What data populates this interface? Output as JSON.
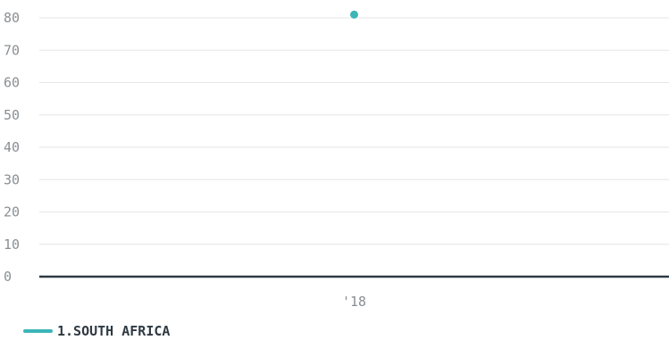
{
  "chart_data": {
    "type": "line",
    "title": "",
    "xlabel": "",
    "ylabel": "",
    "categories": [
      "'18"
    ],
    "ylim": [
      0,
      80
    ],
    "yticks": [
      0,
      10,
      20,
      30,
      40,
      50,
      60,
      70,
      80
    ],
    "grid": true,
    "legend_position": "bottom-left",
    "series": [
      {
        "name": "1.SOUTH AFRICA",
        "color": "#3bb5b8",
        "values": [
          81
        ]
      }
    ]
  },
  "colors": {
    "grid": "#e6e6e6",
    "axis": "#2f3a42",
    "tick_text": "#8a8f93"
  }
}
